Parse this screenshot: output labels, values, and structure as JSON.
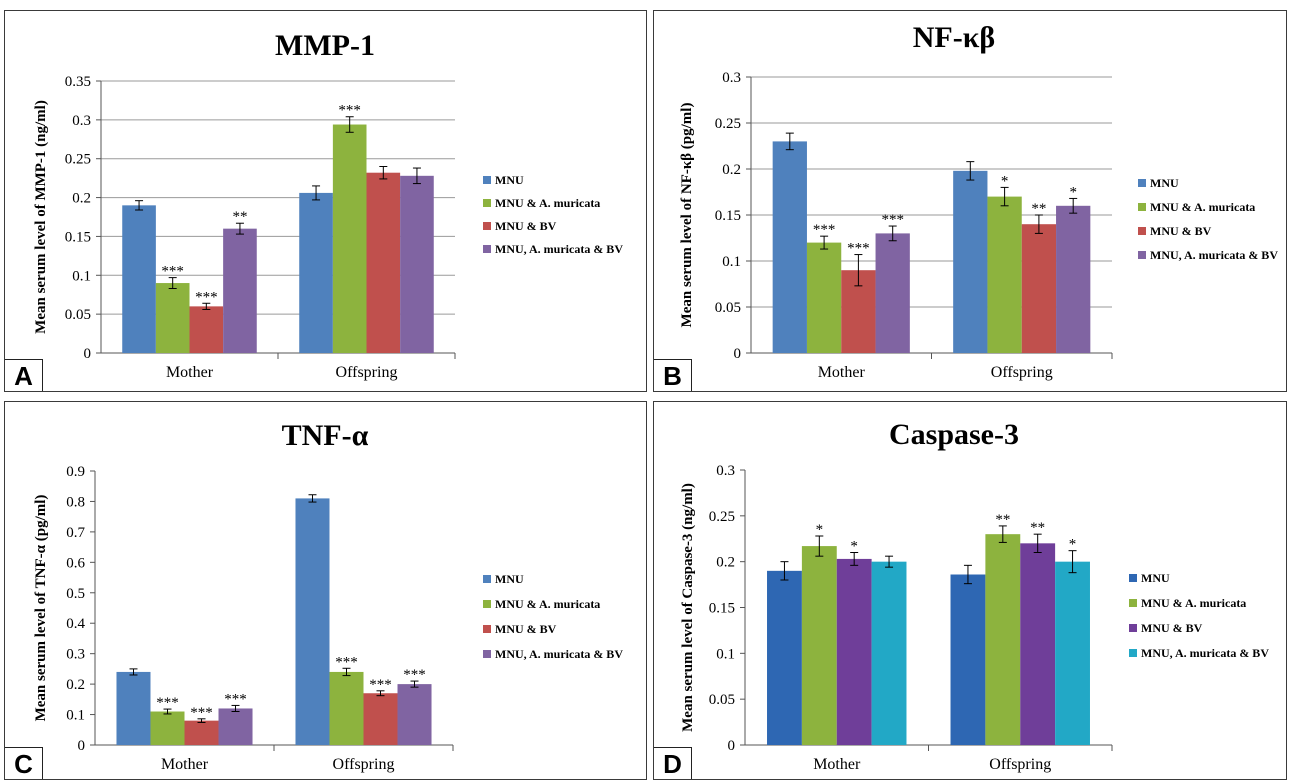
{
  "chart_data": [
    {
      "type": "bar",
      "panel": "A",
      "title": "MMP-1",
      "ylabel": "Mean serum level of MMP-1  (ng/ml)",
      "ylim": [
        0,
        0.35
      ],
      "yticks": [
        "0",
        "0.05",
        "0.1",
        "0.15",
        "0.2",
        "0.25",
        "0.3",
        "0.35"
      ],
      "grid": true,
      "legend": "right",
      "categories": [
        "Mother",
        "Offspring"
      ],
      "series": [
        {
          "name": "MNU",
          "color": "#4F81BD",
          "values": [
            0.19,
            0.206
          ],
          "errors": [
            0.006,
            0.009
          ],
          "sig": [
            "",
            ""
          ]
        },
        {
          "name": "MNU & A. muricata",
          "color": "#8DB33E",
          "values": [
            0.09,
            0.294
          ],
          "errors": [
            0.007,
            0.01
          ],
          "sig": [
            "***",
            "***"
          ]
        },
        {
          "name": "MNU & BV",
          "color": "#C0504D",
          "values": [
            0.06,
            0.232
          ],
          "errors": [
            0.004,
            0.008
          ],
          "sig": [
            "***",
            ""
          ]
        },
        {
          "name": "MNU, A. muricata & BV",
          "color": "#8064A2",
          "values": [
            0.16,
            0.228
          ],
          "errors": [
            0.007,
            0.01
          ],
          "sig": [
            "**",
            ""
          ]
        }
      ]
    },
    {
      "type": "bar",
      "panel": "B",
      "title": "NF-κβ",
      "ylabel": "Mean serum level of NF-κβ (pg/ml)",
      "ylim": [
        0,
        0.3
      ],
      "yticks": [
        "0",
        "0.05",
        "0.1",
        "0.15",
        "0.2",
        "0.25",
        "0.3"
      ],
      "grid": true,
      "legend": "right",
      "categories": [
        "Mother",
        "Offspring"
      ],
      "series": [
        {
          "name": "MNU",
          "color": "#4F81BD",
          "values": [
            0.23,
            0.198
          ],
          "errors": [
            0.009,
            0.01
          ],
          "sig": [
            "",
            ""
          ]
        },
        {
          "name": "MNU & A. muricata",
          "color": "#8DB33E",
          "values": [
            0.12,
            0.17
          ],
          "errors": [
            0.007,
            0.01
          ],
          "sig": [
            "***",
            "*"
          ]
        },
        {
          "name": "MNU & BV",
          "color": "#C0504D",
          "values": [
            0.09,
            0.14
          ],
          "errors": [
            0.017,
            0.01
          ],
          "sig": [
            "***",
            "**"
          ]
        },
        {
          "name": "MNU, A. muricata & BV",
          "color": "#8064A2",
          "values": [
            0.13,
            0.16
          ],
          "errors": [
            0.008,
            0.008
          ],
          "sig": [
            "***",
            "*"
          ]
        }
      ]
    },
    {
      "type": "bar",
      "panel": "C",
      "title": "TNF-α",
      "ylabel": "Mean serum level of TNF-α (pg/ml)",
      "ylim": [
        0,
        0.9
      ],
      "yticks": [
        "0",
        "0.1",
        "0.2",
        "0.3",
        "0.4",
        "0.5",
        "0.6",
        "0.7",
        "0.8",
        "0.9"
      ],
      "grid": false,
      "legend": "right",
      "categories": [
        "Mother",
        "Offspring"
      ],
      "series": [
        {
          "name": "MNU",
          "color": "#4F81BD",
          "values": [
            0.24,
            0.81
          ],
          "errors": [
            0.01,
            0.012
          ],
          "sig": [
            "",
            ""
          ]
        },
        {
          "name": "MNU & A. muricata",
          "color": "#8DB33E",
          "values": [
            0.11,
            0.24
          ],
          "errors": [
            0.008,
            0.012
          ],
          "sig": [
            "***",
            "***"
          ]
        },
        {
          "name": "MNU & BV",
          "color": "#C0504D",
          "values": [
            0.08,
            0.17
          ],
          "errors": [
            0.006,
            0.008
          ],
          "sig": [
            "***",
            "***"
          ]
        },
        {
          "name": "MNU, A. muricata & BV",
          "color": "#8064A2",
          "values": [
            0.12,
            0.2
          ],
          "errors": [
            0.01,
            0.01
          ],
          "sig": [
            "***",
            "***"
          ]
        }
      ]
    },
    {
      "type": "bar",
      "panel": "D",
      "title": "Caspase-3",
      "ylabel": "Mean serum level of Caspase-3 (ng/ml)",
      "ylim": [
        0,
        0.3
      ],
      "yticks": [
        "0",
        "0.05",
        "0.1",
        "0.15",
        "0.2",
        "0.25",
        "0.3"
      ],
      "grid": false,
      "legend": "right",
      "categories": [
        "Mother",
        "Offspring"
      ],
      "series": [
        {
          "name": "MNU",
          "color": "#2E67B3",
          "values": [
            0.19,
            0.186
          ],
          "errors": [
            0.01,
            0.01
          ],
          "sig": [
            "",
            ""
          ]
        },
        {
          "name": "MNU & A. muricata",
          "color": "#8DB33E",
          "values": [
            0.217,
            0.23
          ],
          "errors": [
            0.011,
            0.009
          ],
          "sig": [
            "*",
            "**"
          ]
        },
        {
          "name": "MNU & BV",
          "color": "#6F3E99",
          "values": [
            0.203,
            0.22
          ],
          "errors": [
            0.007,
            0.01
          ],
          "sig": [
            "*",
            "**"
          ]
        },
        {
          "name": "MNU, A. muricata & BV",
          "color": "#22A8C6",
          "values": [
            0.2,
            0.2
          ],
          "errors": [
            0.006,
            0.012
          ],
          "sig": [
            "",
            "*"
          ]
        }
      ]
    }
  ]
}
